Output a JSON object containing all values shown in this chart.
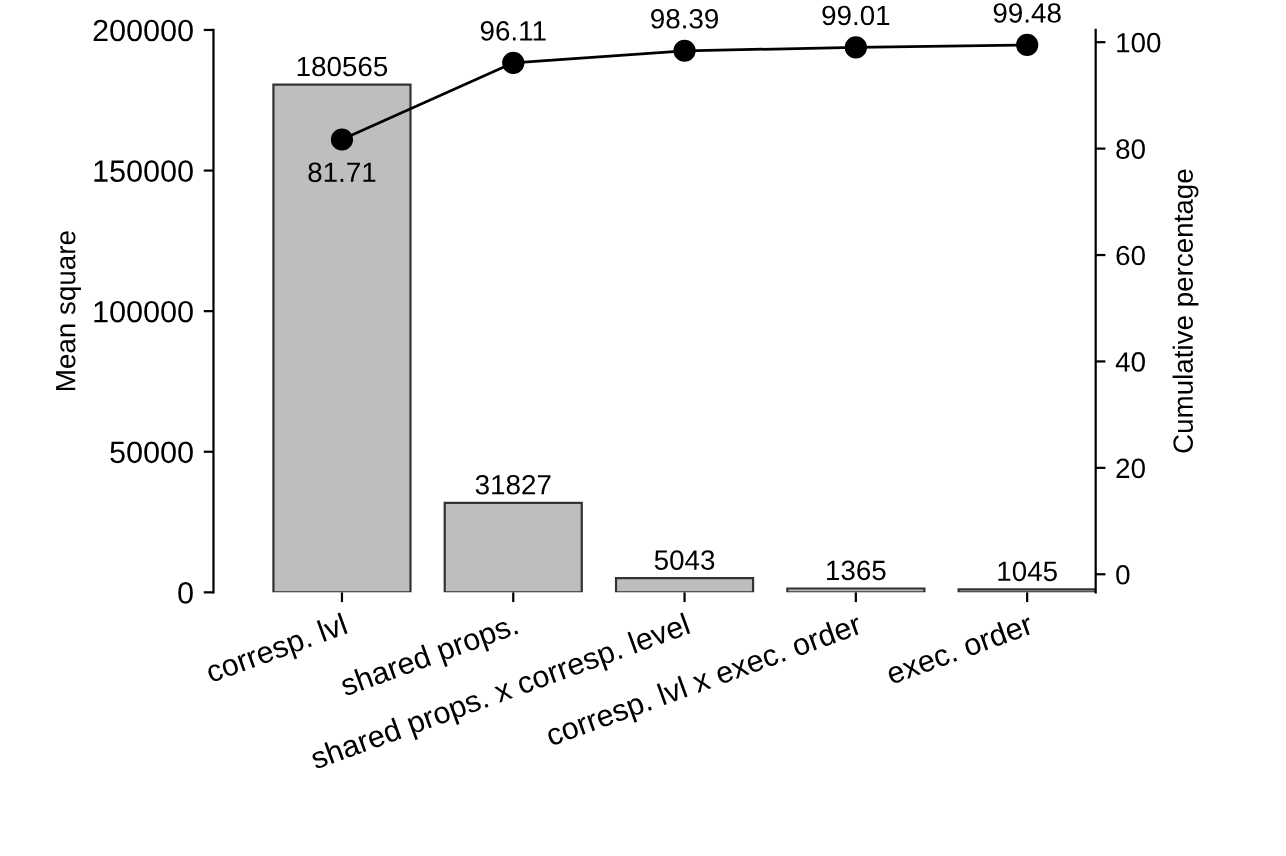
{
  "chart_data": {
    "type": "bar",
    "ylabel": "Mean square",
    "y2label": "Cumulative percentage",
    "categories": [
      "corresp. lvl",
      "shared props.",
      "shared props. x corresp. level",
      "corresp. lvl x exec. order",
      "exec. order"
    ],
    "series": [
      {
        "color": "#bebebe",
        "values": [
          180565,
          31827,
          5043,
          1365,
          1045
        ]
      },
      {
        "type": "line",
        "axis": "y2",
        "color": "#000000",
        "values": [
          81.71,
          96.11,
          98.39,
          99.01,
          99.48
        ]
      }
    ],
    "ylim": [
      0,
      200000
    ],
    "yticks": [
      0,
      50000,
      100000,
      150000,
      200000
    ],
    "y2lim": [
      -3.4,
      102.3
    ],
    "y2ticks": [
      0,
      20,
      40,
      60,
      80,
      100
    ],
    "marker": "circle",
    "line_style": "solid",
    "data_labels": true,
    "grid": false,
    "legend": false
  }
}
